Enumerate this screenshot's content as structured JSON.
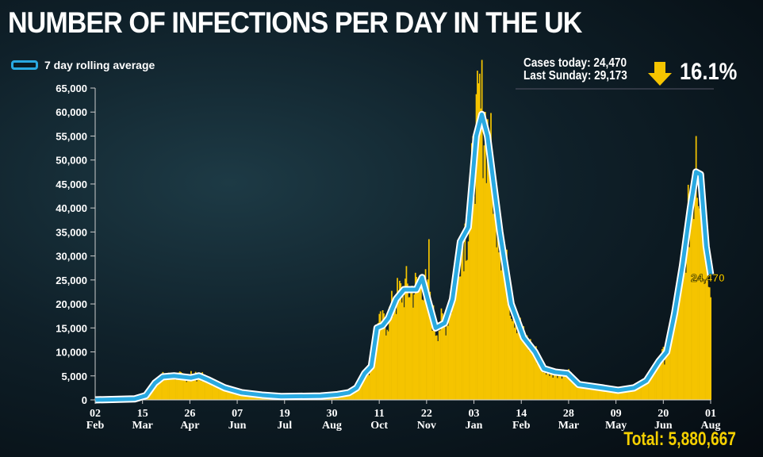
{
  "title": "NUMBER OF INFECTIONS PER DAY IN THE UK",
  "legend": "7 day rolling average",
  "stats": {
    "today": "Cases today: 24,470",
    "last_sunday": "Last Sunday: 29,173",
    "change": "16.1%",
    "direction": "down"
  },
  "total": "Total: 5,880,667",
  "colors": {
    "bars": "#f5c400",
    "line": "#29a9e1",
    "highlight": "#f5d000"
  },
  "chart_data": {
    "type": "bar",
    "title": "NUMBER OF INFECTIONS PER DAY IN THE UK",
    "ylim": [
      0,
      65000
    ],
    "y_ticks": [
      "0",
      "5,000",
      "10,000",
      "15,000",
      "20,000",
      "25,000",
      "30,000",
      "35,000",
      "40,000",
      "45,000",
      "50,000",
      "55,000",
      "60,000",
      "65,000"
    ],
    "x_ticks": [
      [
        "02",
        "Feb"
      ],
      [
        "15",
        "Mar"
      ],
      [
        "26",
        "Apr"
      ],
      [
        "07",
        "Jun"
      ],
      [
        "19",
        "Jul"
      ],
      [
        "30",
        "Aug"
      ],
      [
        "11",
        "Oct"
      ],
      [
        "22",
        "Nov"
      ],
      [
        "03",
        "Jan"
      ],
      [
        "14",
        "Feb"
      ],
      [
        "28",
        "Mar"
      ],
      [
        "09",
        "May"
      ],
      [
        "20",
        "Jun"
      ],
      [
        "01",
        "Aug"
      ]
    ],
    "x_range_days": [
      0,
      546
    ],
    "annotation": "24,470",
    "rolling_average": [
      [
        0,
        0
      ],
      [
        35,
        200
      ],
      [
        45,
        900
      ],
      [
        53,
        3500
      ],
      [
        60,
        4800
      ],
      [
        70,
        5000
      ],
      [
        85,
        4600
      ],
      [
        92,
        5000
      ],
      [
        100,
        4200
      ],
      [
        115,
        2500
      ],
      [
        130,
        1500
      ],
      [
        148,
        1000
      ],
      [
        165,
        700
      ],
      [
        200,
        800
      ],
      [
        215,
        1100
      ],
      [
        225,
        1500
      ],
      [
        232,
        2500
      ],
      [
        239,
        5500
      ],
      [
        245,
        7000
      ],
      [
        250,
        15000
      ],
      [
        255,
        15500
      ],
      [
        260,
        17000
      ],
      [
        267,
        21000
      ],
      [
        274,
        23000
      ],
      [
        285,
        23000
      ],
      [
        290,
        25500
      ],
      [
        295,
        21000
      ],
      [
        302,
        15000
      ],
      [
        310,
        16000
      ],
      [
        317,
        21000
      ],
      [
        324,
        33000
      ],
      [
        331,
        36000
      ],
      [
        338,
        55000
      ],
      [
        343,
        59500
      ],
      [
        348,
        55000
      ],
      [
        359,
        35000
      ],
      [
        369,
        20000
      ],
      [
        380,
        13000
      ],
      [
        390,
        10000
      ],
      [
        398,
        6500
      ],
      [
        408,
        5800
      ],
      [
        419,
        5500
      ],
      [
        429,
        3200
      ],
      [
        450,
        2500
      ],
      [
        464,
        2000
      ],
      [
        478,
        2500
      ],
      [
        489,
        4000
      ],
      [
        500,
        8000
      ],
      [
        507,
        10000
      ],
      [
        514,
        18000
      ],
      [
        521,
        28000
      ],
      [
        528,
        40000
      ],
      [
        533,
        47500
      ],
      [
        537,
        47000
      ],
      [
        542,
        32000
      ],
      [
        546,
        26000
      ]
    ],
    "daily_peaks": [
      [
        85,
        6000
      ],
      [
        296,
        33500
      ],
      [
        341,
        68000
      ],
      [
        533,
        55000
      ]
    ]
  }
}
